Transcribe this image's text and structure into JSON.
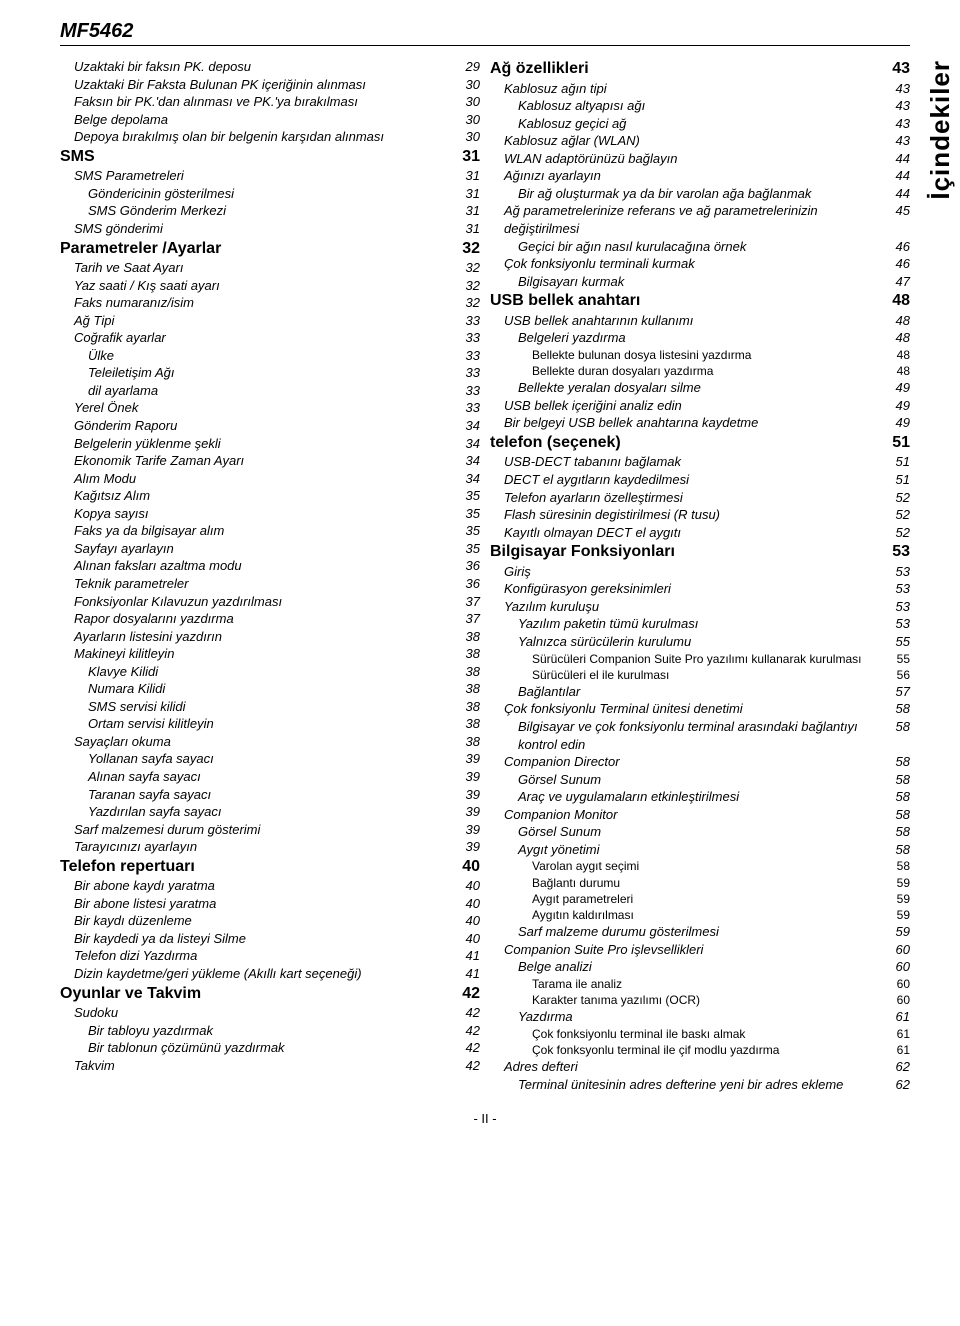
{
  "header": "MF5462",
  "side_label": "İçindekiler",
  "footer": "- II -",
  "colors": {
    "text": "#000000",
    "background": "#ffffff",
    "rule": "#000000"
  },
  "font_sizes": {
    "header": 20,
    "lvl0": 16,
    "lvl1": 13,
    "lvl2": 13,
    "lvl3": 12,
    "side": 26
  },
  "left_toc": [
    {
      "level": 1,
      "label": "Uzaktaki bir faksın PK. deposu",
      "page": "29"
    },
    {
      "level": 1,
      "label": "Uzaktaki Bir Faksta Bulunan PK içeriğinin alınması",
      "page": "30"
    },
    {
      "level": 1,
      "label": "Faksın bir PK.'dan alınması ve PK.'ya bırakılması",
      "page": "30"
    },
    {
      "level": 1,
      "label": "Belge depolama",
      "page": "30"
    },
    {
      "level": 1,
      "label": "Depoya bırakılmış olan bir belgenin karşıdan alınması",
      "page": "30"
    },
    {
      "level": 0,
      "label": "SMS",
      "page": "31"
    },
    {
      "level": 1,
      "label": "SMS Parametreleri",
      "page": "31"
    },
    {
      "level": 2,
      "label": "Göndericinin gösterilmesi",
      "page": "31"
    },
    {
      "level": 2,
      "label": "SMS Gönderim Merkezi",
      "page": "31"
    },
    {
      "level": 1,
      "label": "SMS gönderimi",
      "page": "31"
    },
    {
      "level": 0,
      "label": "Parametreler /Ayarlar",
      "page": "32"
    },
    {
      "level": 1,
      "label": "Tarih ve Saat Ayarı",
      "page": "32"
    },
    {
      "level": 1,
      "label": "Yaz saati / Kış saati ayarı",
      "page": "32"
    },
    {
      "level": 1,
      "label": "Faks numaranız/isim",
      "page": "32"
    },
    {
      "level": 1,
      "label": "Ağ Tipi",
      "page": "33"
    },
    {
      "level": 1,
      "label": "Coğrafik ayarlar",
      "page": "33"
    },
    {
      "level": 2,
      "label": "Ülke",
      "page": "33"
    },
    {
      "level": 2,
      "label": "Teleiletişim Ağı",
      "page": "33"
    },
    {
      "level": 2,
      "label": "dil ayarlama",
      "page": "33"
    },
    {
      "level": 1,
      "label": "Yerel Önek",
      "page": "33"
    },
    {
      "level": 1,
      "label": "Gönderim Raporu",
      "page": "34"
    },
    {
      "level": 1,
      "label": "Belgelerin yüklenme şekli",
      "page": "34"
    },
    {
      "level": 1,
      "label": "Ekonomik Tarife Zaman Ayarı",
      "page": "34"
    },
    {
      "level": 1,
      "label": "Alım Modu",
      "page": "34"
    },
    {
      "level": 1,
      "label": "Kağıtsız Alım",
      "page": "35"
    },
    {
      "level": 1,
      "label": "Kopya sayısı",
      "page": "35"
    },
    {
      "level": 1,
      "label": "Faks ya da bilgisayar alım",
      "page": "35"
    },
    {
      "level": 1,
      "label": "Sayfayı ayarlayın",
      "page": "35"
    },
    {
      "level": 1,
      "label": "Alınan faksları azaltma modu",
      "page": "36"
    },
    {
      "level": 1,
      "label": "Teknik parametreler",
      "page": "36"
    },
    {
      "level": 1,
      "label": "Fonksiyonlar Kılavuzun yazdırılması",
      "page": "37"
    },
    {
      "level": 1,
      "label": "Rapor dosyalarını yazdırma",
      "page": "37"
    },
    {
      "level": 1,
      "label": "Ayarların listesini yazdırın",
      "page": "38"
    },
    {
      "level": 1,
      "label": "Makineyi kilitleyin",
      "page": "38"
    },
    {
      "level": 2,
      "label": "Klavye Kilidi",
      "page": "38"
    },
    {
      "level": 2,
      "label": "Numara Kilidi",
      "page": "38"
    },
    {
      "level": 2,
      "label": "SMS servisi kilidi",
      "page": "38"
    },
    {
      "level": 2,
      "label": "Ortam servisi kilitleyin",
      "page": "38"
    },
    {
      "level": 1,
      "label": "Sayaçları okuma",
      "page": "38"
    },
    {
      "level": 2,
      "label": "Yollanan sayfa sayacı",
      "page": "39"
    },
    {
      "level": 2,
      "label": "Alınan sayfa sayacı",
      "page": "39"
    },
    {
      "level": 2,
      "label": "Taranan sayfa sayacı",
      "page": "39"
    },
    {
      "level": 2,
      "label": "Yazdırılan sayfa sayacı",
      "page": "39"
    },
    {
      "level": 1,
      "label": "Sarf malzemesi durum gösterimi",
      "page": "39"
    },
    {
      "level": 1,
      "label": "Tarayıcınızı ayarlayın",
      "page": "39"
    },
    {
      "level": 0,
      "label": "Telefon repertuarı",
      "page": "40"
    },
    {
      "level": 1,
      "label": "Bir abone kaydı yaratma",
      "page": "40"
    },
    {
      "level": 1,
      "label": "Bir abone listesi yaratma",
      "page": "40"
    },
    {
      "level": 1,
      "label": "Bir kaydı düzenleme",
      "page": "40"
    },
    {
      "level": 1,
      "label": "Bir kaydedi ya da listeyi Silme",
      "page": "40"
    },
    {
      "level": 1,
      "label": "Telefon dizi Yazdırma",
      "page": "41"
    },
    {
      "level": 1,
      "label": "Dizin kaydetme/geri yükleme (Akıllı kart seçeneği)",
      "page": "41"
    },
    {
      "level": 0,
      "label": "Oyunlar ve Takvim",
      "page": "42"
    },
    {
      "level": 1,
      "label": "Sudoku",
      "page": "42"
    },
    {
      "level": 2,
      "label": "Bir tabloyu yazdırmak",
      "page": "42"
    },
    {
      "level": 2,
      "label": "Bir tablonun çözümünü yazdırmak",
      "page": "42"
    },
    {
      "level": 1,
      "label": "Takvim",
      "page": "42"
    }
  ],
  "right_toc": [
    {
      "level": 0,
      "label": "Ağ özellikleri",
      "page": "43"
    },
    {
      "level": 1,
      "label": "Kablosuz ağın tipi",
      "page": "43"
    },
    {
      "level": 2,
      "label": "Kablosuz altyapısı ağı",
      "page": "43"
    },
    {
      "level": 2,
      "label": "Kablosuz geçici ağ",
      "page": "43"
    },
    {
      "level": 1,
      "label": "Kablosuz ağlar (WLAN)",
      "page": "43"
    },
    {
      "level": 1,
      "label": "WLAN adaptörünüzü bağlayın",
      "page": "44"
    },
    {
      "level": 1,
      "label": "Ağınızı ayarlayın",
      "page": "44"
    },
    {
      "level": 2,
      "label": "Bir ağ oluşturmak ya da bir varolan ağa bağlanmak",
      "page": "44"
    },
    {
      "level": 1,
      "label": "Ağ parametrelerinize referans ve ağ parametrelerinizin değiştirilmesi",
      "page": "45"
    },
    {
      "level": 2,
      "label": "Geçici bir ağın nasıl kurulacağına örnek",
      "page": "46"
    },
    {
      "level": 1,
      "label": "Çok fonksiyonlu terminali kurmak",
      "page": "46"
    },
    {
      "level": 2,
      "label": "Bilgisayarı kurmak",
      "page": "47"
    },
    {
      "level": 0,
      "label": "USB bellek anahtarı",
      "page": "48"
    },
    {
      "level": 1,
      "label": "USB bellek anahtarının kullanımı",
      "page": "48"
    },
    {
      "level": 2,
      "label": "Belgeleri yazdırma",
      "page": "48"
    },
    {
      "level": 3,
      "label": "Bellekte bulunan dosya listesini yazdırma",
      "page": "48"
    },
    {
      "level": 3,
      "label": "Bellekte duran dosyaları yazdırma",
      "page": "48"
    },
    {
      "level": 2,
      "label": "Bellekte yeralan dosyaları silme",
      "page": "49"
    },
    {
      "level": 1,
      "label": "USB bellek içeriğini analiz edin",
      "page": "49"
    },
    {
      "level": 1,
      "label": "Bir belgeyi USB bellek anahtarına kaydetme",
      "page": "49"
    },
    {
      "level": 0,
      "label": "telefon (seçenek)",
      "page": "51"
    },
    {
      "level": 1,
      "label": "USB-DECT tabanını bağlamak",
      "page": "51"
    },
    {
      "level": 1,
      "label": "DECT el aygıtların kaydedilmesi",
      "page": "51"
    },
    {
      "level": 1,
      "label": "Telefon ayarların özelleştirmesi",
      "page": "52"
    },
    {
      "level": 1,
      "label": "Flash süresinin degistirilmesi (R tusu)",
      "page": "52"
    },
    {
      "level": 1,
      "label": "Kayıtlı olmayan DECT el aygıtı",
      "page": "52"
    },
    {
      "level": 0,
      "label": "Bilgisayar Fonksiyonları",
      "page": "53"
    },
    {
      "level": 1,
      "label": "Giriş",
      "page": "53"
    },
    {
      "level": 1,
      "label": "Konfigürasyon gereksinimleri",
      "page": "53"
    },
    {
      "level": 1,
      "label": "Yazılım kuruluşu",
      "page": "53"
    },
    {
      "level": 2,
      "label": "Yazılım paketin tümü kurulması",
      "page": "53"
    },
    {
      "level": 2,
      "label": "Yalnızca sürücülerin kurulumu",
      "page": "55"
    },
    {
      "level": 3,
      "label": "Sürücüleri Companion Suite Pro yazılımı kullanarak kurulması",
      "page": "55"
    },
    {
      "level": 3,
      "label": "Sürücüleri el ile kurulması",
      "page": "56"
    },
    {
      "level": 2,
      "label": "Bağlantılar",
      "page": "57"
    },
    {
      "level": 1,
      "label": "Çok fonksiyonlu Terminal ünitesi denetimi",
      "page": "58"
    },
    {
      "level": 2,
      "label": "Bilgisayar ve çok fonksiyonlu terminal arasındaki bağlantıyı kontrol edin",
      "page": "58"
    },
    {
      "level": 1,
      "label": "Companion Director",
      "page": "58"
    },
    {
      "level": 2,
      "label": "Görsel Sunum",
      "page": "58"
    },
    {
      "level": 2,
      "label": "Araç ve uygulamaların etkinleştirilmesi",
      "page": "58"
    },
    {
      "level": 1,
      "label": "Companion Monitor",
      "page": "58"
    },
    {
      "level": 2,
      "label": "Görsel Sunum",
      "page": "58"
    },
    {
      "level": 2,
      "label": "Aygıt yönetimi",
      "page": "58"
    },
    {
      "level": 3,
      "label": "Varolan aygıt seçimi",
      "page": "58"
    },
    {
      "level": 3,
      "label": "Bağlantı durumu",
      "page": "59"
    },
    {
      "level": 3,
      "label": "Aygıt parametreleri",
      "page": "59"
    },
    {
      "level": 3,
      "label": "Aygıtın kaldırılması",
      "page": "59"
    },
    {
      "level": 2,
      "label": "Sarf malzeme durumu gösterilmesi",
      "page": "59"
    },
    {
      "level": 1,
      "label": "Companion Suite Pro işlevsellikleri",
      "page": "60"
    },
    {
      "level": 2,
      "label": "Belge analizi",
      "page": "60"
    },
    {
      "level": 3,
      "label": "Tarama ile analiz",
      "page": "60"
    },
    {
      "level": 3,
      "label": "Karakter tanıma yazılımı (OCR)",
      "page": "60"
    },
    {
      "level": 2,
      "label": "Yazdırma",
      "page": "61"
    },
    {
      "level": 3,
      "label": "Çok fonksiyonlu terminal ile baskı almak",
      "page": "61"
    },
    {
      "level": 3,
      "label": "Çok fonksyonlu terminal ile çif modlu yazdırma",
      "page": "61"
    },
    {
      "level": 1,
      "label": "Adres defteri",
      "page": "62"
    },
    {
      "level": 2,
      "label": "Terminal ünitesinin adres defterine yeni bir adres ekleme",
      "page": "62"
    }
  ]
}
